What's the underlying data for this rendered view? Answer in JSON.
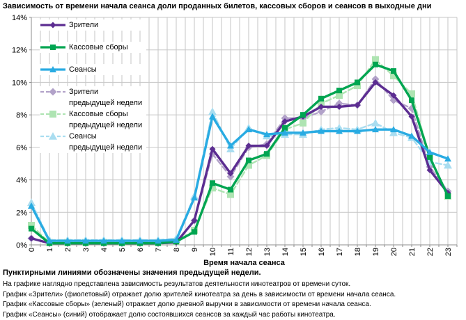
{
  "chart_data": {
    "type": "line",
    "title": "Зависимость от времени начала сеанса доли проданных билетов, кассовых сборов и сеансов в выходные дни",
    "xlabel": "Время начала сеанса",
    "x": [
      0,
      1,
      2,
      3,
      4,
      5,
      6,
      7,
      8,
      9,
      10,
      11,
      12,
      13,
      14,
      15,
      16,
      17,
      18,
      19,
      20,
      21,
      22,
      23
    ],
    "ylim": [
      0,
      14
    ],
    "ytick_step": 2,
    "ytick_suffix": "%",
    "x_minor_step": 0.5,
    "grid": true,
    "legend_position": "top-left",
    "grid_color": "#c6c6c6",
    "axis_color": "#8c8c8c",
    "series": [
      {
        "name": "Зрители",
        "legend_label": "Зрители",
        "legend_label2": "",
        "color": "#5c2d91",
        "dash": false,
        "marker": "diamond",
        "values": [
          0.4,
          0.1,
          0.1,
          0.1,
          0.1,
          0.1,
          0.1,
          0.1,
          0.15,
          1.5,
          5.9,
          4.4,
          6.1,
          6.1,
          7.6,
          7.9,
          8.5,
          8.5,
          8.6,
          10.0,
          9.2,
          7.9,
          4.6,
          3.2
        ]
      },
      {
        "name": "Кассовые сборы",
        "legend_label": "Кассовые сборы",
        "legend_label2": "",
        "color": "#00a551",
        "dash": false,
        "marker": "square",
        "values": [
          1.0,
          0.1,
          0.1,
          0.1,
          0.1,
          0.1,
          0.1,
          0.1,
          0.2,
          0.8,
          3.8,
          3.4,
          5.2,
          5.6,
          7.2,
          8.0,
          9.0,
          9.5,
          10.0,
          11.1,
          10.7,
          8.9,
          5.4,
          3.0
        ]
      },
      {
        "name": "Сеансы",
        "legend_label": "Сеансы",
        "legend_label2": "",
        "color": "#29abe2",
        "dash": false,
        "marker": "triangle",
        "values": [
          2.4,
          0.25,
          0.25,
          0.25,
          0.25,
          0.25,
          0.25,
          0.25,
          0.3,
          2.9,
          7.9,
          6.1,
          7.1,
          6.8,
          6.9,
          6.9,
          7.0,
          7.0,
          7.0,
          7.1,
          7.1,
          6.7,
          5.7,
          5.3
        ]
      },
      {
        "name": "Зрители предыдущей недели",
        "legend_label": "Зрители",
        "legend_label2": "предыдущей недели",
        "color": "#b2a2c9",
        "dash": true,
        "marker": "diamond",
        "values": [
          0.4,
          0.1,
          0.1,
          0.1,
          0.1,
          0.1,
          0.1,
          0.1,
          0.15,
          1.5,
          5.6,
          4.2,
          6.0,
          6.2,
          7.8,
          7.8,
          8.2,
          8.7,
          8.6,
          10.2,
          8.9,
          8.4,
          4.8,
          3.3
        ]
      },
      {
        "name": "Кассовые сборы предыдущей недели",
        "legend_label": "Кассовые сборы",
        "legend_label2": "предыдущей недели",
        "color": "#aee4b2",
        "dash": true,
        "marker": "square",
        "values": [
          1.2,
          0.15,
          0.15,
          0.15,
          0.15,
          0.15,
          0.15,
          0.15,
          0.2,
          0.9,
          3.5,
          3.1,
          4.9,
          5.5,
          7.1,
          7.5,
          8.7,
          9.2,
          9.8,
          11.4,
          10.4,
          9.3,
          5.4,
          3.0
        ]
      },
      {
        "name": "Сеансы предыдущей недели",
        "legend_label": "Сеансы",
        "legend_label2": "предыдущей недели",
        "color": "#a9ddf0",
        "dash": true,
        "marker": "triangle",
        "values": [
          2.6,
          0.3,
          0.3,
          0.3,
          0.3,
          0.3,
          0.3,
          0.3,
          0.4,
          3.0,
          8.2,
          5.9,
          7.2,
          6.7,
          6.8,
          6.8,
          7.1,
          7.2,
          7.1,
          7.5,
          6.9,
          6.6,
          5.1,
          4.9
        ]
      }
    ]
  },
  "footer": {
    "bold_note": "Пунктирными линиями обозначены значения предыдущей недели.",
    "lines": [
      "На графике наглядно представлена зависимость результатов деятельности кинотеатров от времени суток.",
      "График «Зрители» (фиолетовый) отражает долю зрителей кинотеатра за день в зависимости от времени начала сеанса.",
      "График «Кассовые сборы» (зеленый) отражает долю дневной выручки в зависимости от времени начала сеанса.",
      "График «Сеансы» (синий) отображает долю состоявшихся сеансов за каждый час работы кинотеатра."
    ]
  }
}
